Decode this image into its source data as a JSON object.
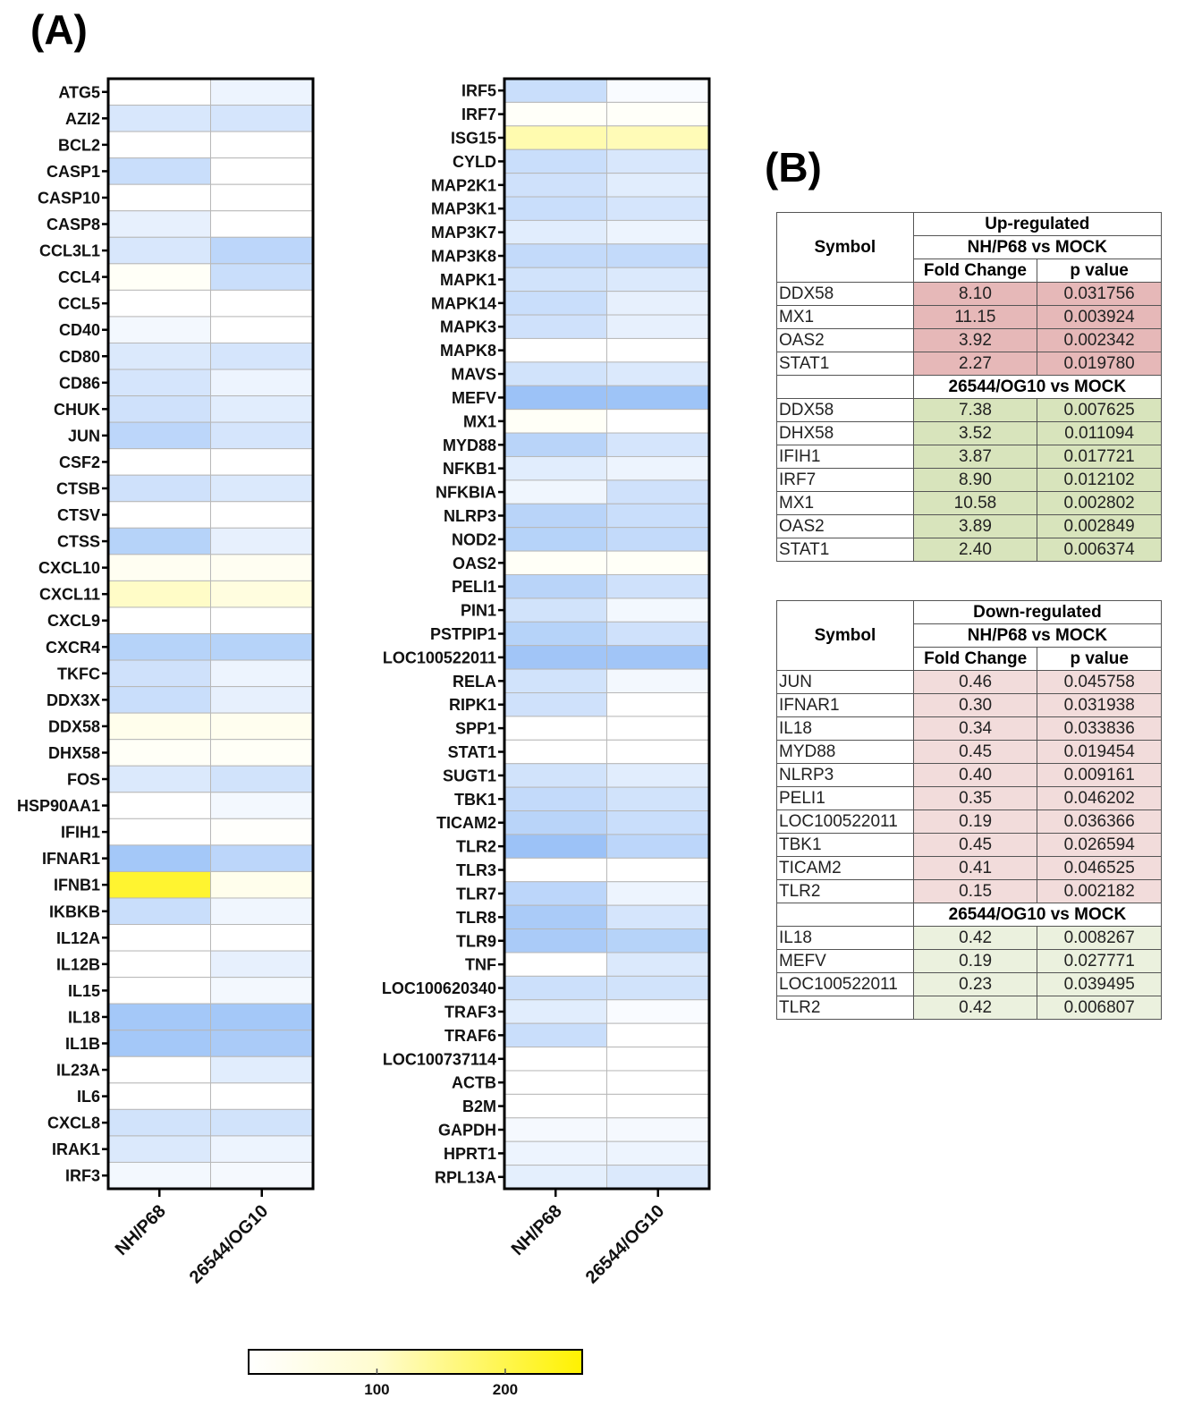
{
  "panels": {
    "a": "(A)",
    "b": "(B)"
  },
  "chart_data": [
    {
      "type": "heatmap",
      "id": "left",
      "columns": [
        "NH/P68",
        "26544/OG10"
      ],
      "rows": [
        "ATG5",
        "AZI2",
        "BCL2",
        "CASP1",
        "CASP10",
        "CASP8",
        "CCL3L1",
        "CCL4",
        "CCL5",
        "CD40",
        "CD80",
        "CD86",
        "CHUK",
        "JUN",
        "CSF2",
        "CTSB",
        "CTSV",
        "CTSS",
        "CXCL10",
        "CXCL11",
        "CXCL9",
        "CXCR4",
        "TKFC",
        "DDX3X",
        "DDX58",
        "DHX58",
        "FOS",
        "HSP90AA1",
        "IFIH1",
        "IFNAR1",
        "IFNB1",
        "IKBKB",
        "IL12A",
        "IL12B",
        "IL15",
        "IL18",
        "IL1B",
        "IL23A",
        "IL6",
        "CXCL8",
        "IRAK1",
        "IRF3"
      ],
      "values": [
        [
          100,
          85
        ],
        [
          68,
          65
        ],
        [
          100,
          100
        ],
        [
          55,
          100
        ],
        [
          100,
          100
        ],
        [
          80,
          100
        ],
        [
          68,
          45
        ],
        [
          105,
          55
        ],
        [
          100,
          100
        ],
        [
          90,
          100
        ],
        [
          70,
          65
        ],
        [
          65,
          85
        ],
        [
          60,
          75
        ],
        [
          45,
          65
        ],
        [
          100,
          100
        ],
        [
          60,
          70
        ],
        [
          100,
          100
        ],
        [
          40,
          80
        ],
        [
          108,
          108
        ],
        [
          135,
          120
        ],
        [
          100,
          100
        ],
        [
          40,
          40
        ],
        [
          60,
          85
        ],
        [
          55,
          80
        ],
        [
          112,
          110
        ],
        [
          105,
          105
        ],
        [
          70,
          62
        ],
        [
          100,
          90
        ],
        [
          100,
          102
        ],
        [
          25,
          45
        ],
        [
          230,
          112
        ],
        [
          55,
          88
        ],
        [
          100,
          100
        ],
        [
          100,
          80
        ],
        [
          100,
          90
        ],
        [
          25,
          25
        ],
        [
          25,
          30
        ],
        [
          100,
          75
        ],
        [
          100,
          100
        ],
        [
          62,
          62
        ],
        [
          70,
          85
        ],
        [
          90,
          92
        ]
      ],
      "color_scale": {
        "min": 0,
        "mid": 100,
        "max": 260,
        "low_color": "#86b5f5",
        "mid_color": "#ffffff",
        "high_color": "#fff200"
      }
    },
    {
      "type": "heatmap",
      "id": "right",
      "columns": [
        "NH/P68",
        "26544/OG10"
      ],
      "rows": [
        "IRF5",
        "IRF7",
        "ISG15",
        "CYLD",
        "MAP2K1",
        "MAP3K1",
        "MAP3K7",
        "MAP3K8",
        "MAPK1",
        "MAPK14",
        "MAPK3",
        "MAPK8",
        "MAVS",
        "MEFV",
        "MX1",
        "MYD88",
        "NFKB1",
        "NFKBIA",
        "NLRP3",
        "NOD2",
        "OAS2",
        "PELI1",
        "PIN1",
        "PSTPIP1",
        "LOC100522011",
        "RELA",
        "RIPK1",
        "SPP1",
        "STAT1",
        "SUGT1",
        "TBK1",
        "TICAM2",
        "TLR2",
        "TLR3",
        "TLR7",
        "TLR8",
        "TLR9",
        "TNF",
        "LOC100620340",
        "TRAF3",
        "TRAF6",
        "LOC100737114",
        "ACTB",
        "B2M",
        "GAPDH",
        "HPRT1",
        "RPL13A"
      ],
      "values": [
        [
          55,
          95
        ],
        [
          104,
          104
        ],
        [
          150,
          145
        ],
        [
          55,
          68
        ],
        [
          60,
          75
        ],
        [
          55,
          65
        ],
        [
          75,
          85
        ],
        [
          50,
          50
        ],
        [
          62,
          70
        ],
        [
          55,
          80
        ],
        [
          60,
          80
        ],
        [
          100,
          100
        ],
        [
          62,
          70
        ],
        [
          18,
          20
        ],
        [
          105,
          100
        ],
        [
          42,
          65
        ],
        [
          75,
          85
        ],
        [
          88,
          60
        ],
        [
          42,
          55
        ],
        [
          40,
          50
        ],
        [
          105,
          105
        ],
        [
          42,
          60
        ],
        [
          62,
          90
        ],
        [
          40,
          60
        ],
        [
          22,
          22
        ],
        [
          62,
          90
        ],
        [
          60,
          100
        ],
        [
          100,
          100
        ],
        [
          100,
          100
        ],
        [
          62,
          75
        ],
        [
          50,
          62
        ],
        [
          42,
          55
        ],
        [
          18,
          45
        ],
        [
          100,
          100
        ],
        [
          45,
          85
        ],
        [
          30,
          65
        ],
        [
          30,
          40
        ],
        [
          100,
          70
        ],
        [
          58,
          62
        ],
        [
          75,
          95
        ],
        [
          55,
          100
        ],
        [
          100,
          100
        ],
        [
          100,
          100
        ],
        [
          100,
          100
        ],
        [
          92,
          92
        ],
        [
          85,
          85
        ],
        [
          78,
          70
        ]
      ],
      "color_scale": {
        "min": 0,
        "mid": 100,
        "max": 260,
        "low_color": "#86b5f5",
        "mid_color": "#ffffff",
        "high_color": "#fff200"
      }
    },
    {
      "type": "colorbar",
      "min": 0,
      "max": 260,
      "ticks": [
        100,
        200
      ],
      "tick_labels": [
        "100",
        "200"
      ]
    }
  ],
  "tables": {
    "up": {
      "symbol_header": "Symbol",
      "title": "Up-regulated",
      "fc_header": "Fold Change",
      "pv_header": "p value",
      "groups": [
        {
          "label": "NH/P68 vs MOCK",
          "color": "#e6b8b8",
          "rows": [
            [
              "DDX58",
              "8.10",
              "0.031756"
            ],
            [
              "MX1",
              "11.15",
              "0.003924"
            ],
            [
              "OAS2",
              "3.92",
              "0.002342"
            ],
            [
              "STAT1",
              "2.27",
              "0.019780"
            ]
          ]
        },
        {
          "label": "26544/OG10 vs MOCK",
          "color": "#d8e4bc",
          "rows": [
            [
              "DDX58",
              "7.38",
              "0.007625"
            ],
            [
              "DHX58",
              "3.52",
              "0.011094"
            ],
            [
              "IFIH1",
              "3.87",
              "0.017721"
            ],
            [
              "IRF7",
              "8.90",
              "0.012102"
            ],
            [
              "MX1",
              "10.58",
              "0.002802"
            ],
            [
              "OAS2",
              "3.89",
              "0.002849"
            ],
            [
              "STAT1",
              "2.40",
              "0.006374"
            ]
          ]
        }
      ]
    },
    "down": {
      "symbol_header": "Symbol",
      "title": "Down-regulated",
      "fc_header": "Fold Change",
      "pv_header": "p value",
      "groups": [
        {
          "label": "NH/P68 vs MOCK",
          "color": "#f2dcdb",
          "rows": [
            [
              "JUN",
              "0.46",
              "0.045758"
            ],
            [
              "IFNAR1",
              "0.30",
              "0.031938"
            ],
            [
              "IL18",
              "0.34",
              "0.033836"
            ],
            [
              "MYD88",
              "0.45",
              "0.019454"
            ],
            [
              "NLRP3",
              "0.40",
              "0.009161"
            ],
            [
              "PELI1",
              "0.35",
              "0.046202"
            ],
            [
              "LOC100522011",
              "0.19",
              "0.036366"
            ],
            [
              "TBK1",
              "0.45",
              "0.026594"
            ],
            [
              "TICAM2",
              "0.41",
              "0.046525"
            ],
            [
              "TLR2",
              "0.15",
              "0.002182"
            ]
          ]
        },
        {
          "label": "26544/OG10 vs MOCK",
          "color": "#ebf1de",
          "rows": [
            [
              "IL18",
              "0.42",
              "0.008267"
            ],
            [
              "MEFV",
              "0.19",
              "0.027771"
            ],
            [
              "LOC100522011",
              "0.23",
              "0.039495"
            ],
            [
              "TLR2",
              "0.42",
              "0.006807"
            ]
          ]
        }
      ]
    }
  }
}
